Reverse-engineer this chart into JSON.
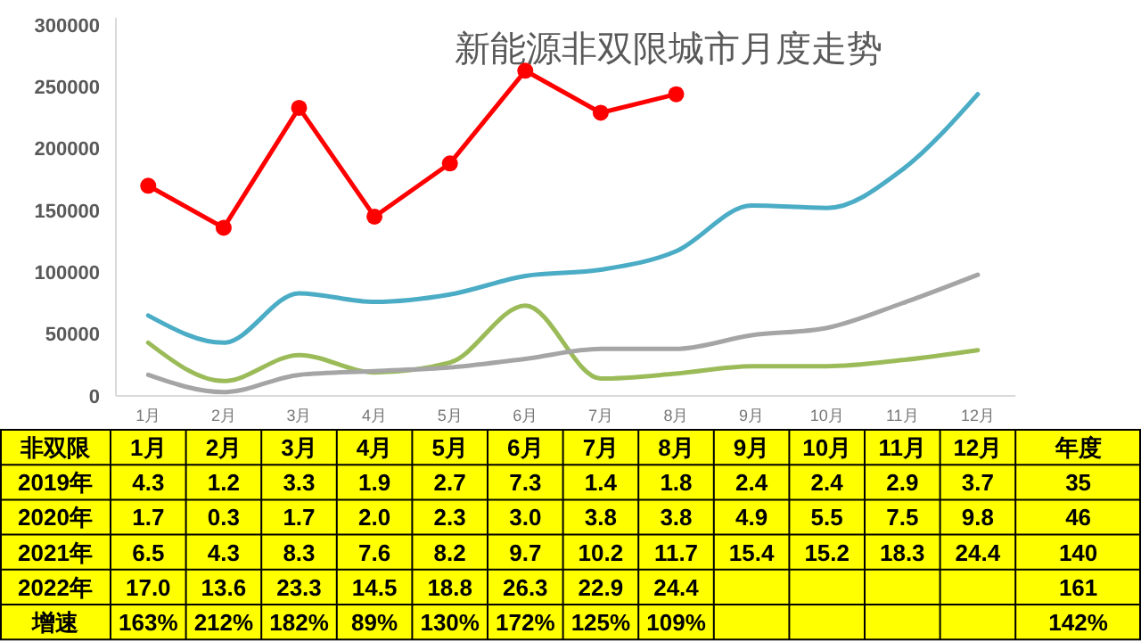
{
  "chart_data": [
    {
      "type": "line",
      "title": "新能源非双限城市月度走势",
      "categories": [
        "1月",
        "2月",
        "3月",
        "4月",
        "5月",
        "6月",
        "7月",
        "8月",
        "9月",
        "10月",
        "11月",
        "12月"
      ],
      "series": [
        {
          "color": "#9bbb59",
          "marker": "none",
          "values": [
            43000,
            12000,
            33000,
            19000,
            27000,
            73000,
            14000,
            18000,
            24000,
            24000,
            29000,
            37000
          ]
        },
        {
          "color": "#a5a5a5",
          "marker": "none",
          "values": [
            17000,
            3000,
            17000,
            20000,
            23000,
            30000,
            38000,
            38000,
            49000,
            55000,
            75000,
            98000
          ]
        },
        {
          "color": "#4bacc6",
          "marker": "none",
          "values": [
            65000,
            43000,
            83000,
            76000,
            82000,
            97000,
            102000,
            117000,
            154000,
            152000,
            183000,
            244000
          ]
        },
        {
          "color": "#ff0000",
          "marker": "circle",
          "values": [
            170000,
            136000,
            233000,
            145000,
            188000,
            263000,
            229000,
            244000,
            null,
            null,
            null,
            null
          ]
        }
      ],
      "ylim": [
        0,
        300000
      ],
      "yticks": [
        0,
        50000,
        100000,
        150000,
        200000,
        250000,
        300000
      ],
      "grid": false
    },
    {
      "type": "heatmap",
      "annotations": [
        "非双限"
      ],
      "categories": [
        "1月",
        "2月",
        "3月",
        "4月",
        "5月",
        "6月",
        "7月",
        "8月",
        "9月",
        "10月",
        "11月",
        "12月",
        "年度"
      ],
      "y_categories": [
        "2019年",
        "2020年",
        "2021年",
        "2022年",
        "增速"
      ],
      "cells": [
        [
          4.3,
          1.2,
          3.3,
          1.9,
          2.7,
          7.3,
          1.4,
          1.8,
          2.4,
          2.4,
          2.9,
          3.7,
          35
        ],
        [
          1.7,
          0.3,
          1.7,
          2.0,
          2.3,
          3.0,
          3.8,
          3.8,
          4.9,
          5.5,
          7.5,
          9.8,
          46
        ],
        [
          6.5,
          4.3,
          8.3,
          7.6,
          8.2,
          9.7,
          10.2,
          11.7,
          15.4,
          15.2,
          18.3,
          24.4,
          140
        ],
        [
          17.0,
          13.6,
          23.3,
          14.5,
          18.8,
          26.3,
          22.9,
          24.4,
          null,
          null,
          null,
          null,
          161
        ],
        [
          163,
          212,
          182,
          89,
          130,
          172,
          125,
          109,
          null,
          null,
          null,
          null,
          142
        ]
      ],
      "cell_labels": [
        [
          "4.3",
          "1.2",
          "3.3",
          "1.9",
          "2.7",
          "7.3",
          "1.4",
          "1.8",
          "2.4",
          "2.4",
          "2.9",
          "3.7",
          "35"
        ],
        [
          "1.7",
          "0.3",
          "1.7",
          "2.0",
          "2.3",
          "3.0",
          "3.8",
          "3.8",
          "4.9",
          "5.5",
          "7.5",
          "9.8",
          "46"
        ],
        [
          "6.5",
          "4.3",
          "8.3",
          "7.6",
          "8.2",
          "9.7",
          "10.2",
          "11.7",
          "15.4",
          "15.2",
          "18.3",
          "24.4",
          "140"
        ],
        [
          "17.0",
          "13.6",
          "23.3",
          "14.5",
          "18.8",
          "26.3",
          "22.9",
          "24.4",
          null,
          null,
          null,
          null,
          "161"
        ],
        [
          "163%",
          "212%",
          "182%",
          "89%",
          "130%",
          "172%",
          "125%",
          "109%",
          null,
          null,
          null,
          null,
          "142%"
        ]
      ]
    }
  ]
}
